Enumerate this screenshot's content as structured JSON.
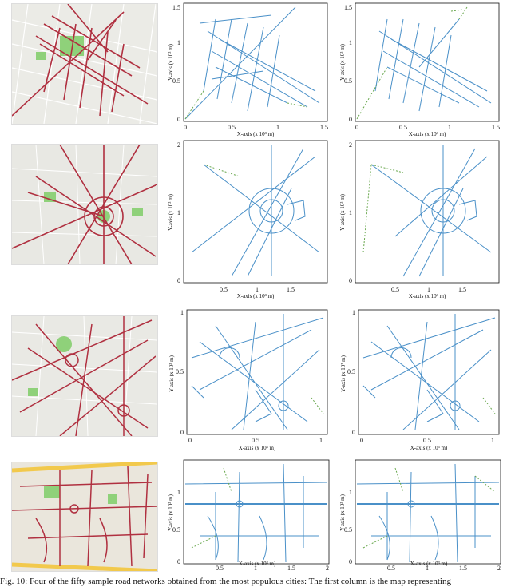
{
  "figure": {
    "caption": "Fig. 10: Four of the fifty sample road networks obtained from the most populous cities: The first column is the map representing"
  },
  "axes": {
    "xlabel": "X-axis (x 10³ m)",
    "ylabel": "Y-axis (x 10³ m)"
  },
  "rows": [
    {
      "xticks": [
        "0",
        "0.5",
        "1",
        "1.5"
      ],
      "yticks": [
        "0",
        "0.5",
        "1",
        "1.5"
      ],
      "xmax": 1.55,
      "ymax": 1.55
    },
    {
      "xticks": [
        "0.5",
        "1",
        "1.5"
      ],
      "yticks": [
        "0",
        "1",
        "2"
      ],
      "xmax": 2.0,
      "ymax": 2.05,
      "xmin": 0.2
    },
    {
      "xticks": [
        "0",
        "0.5",
        "1"
      ],
      "yticks": [
        "0",
        "0.5",
        "1"
      ],
      "xmax": 1.05,
      "ymax": 1.0
    },
    {
      "xticks": [
        "0.5",
        "1",
        "1.5",
        "2"
      ],
      "yticks": [
        "0",
        "0.5",
        "1"
      ],
      "xmax": 2.1,
      "ymax": 1.15,
      "xmin": 0.0
    }
  ],
  "colors": {
    "road": "#4a90c8",
    "gap": "#6aa84f",
    "map_road": "#b03040",
    "park": "#8fd17a"
  }
}
